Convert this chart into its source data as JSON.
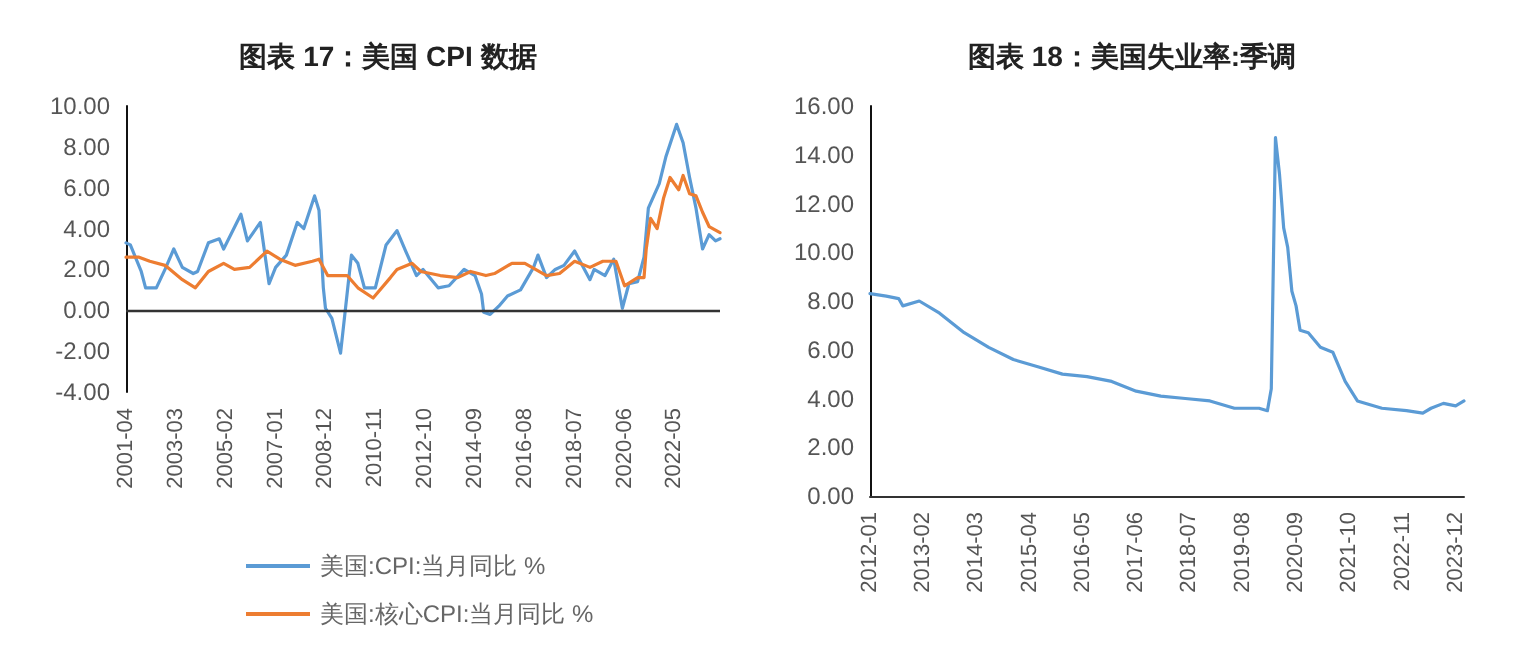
{
  "chart_data": [
    {
      "type": "line",
      "title": "图表 17：美国 CPI 数据",
      "xlim": [
        "2001-04",
        "2024-02"
      ],
      "xticks": [
        "2001-04",
        "2003-03",
        "2005-02",
        "2007-01",
        "2008-12",
        "2010-11",
        "2012-10",
        "2014-09",
        "2016-08",
        "2018-07",
        "2020-06",
        "2022-05"
      ],
      "ylim": [
        -4,
        10
      ],
      "yticks": [
        {
          "value": -4,
          "label": "-4.00"
        },
        {
          "value": -2,
          "label": "-2.00"
        },
        {
          "value": 0,
          "label": "0.00"
        },
        {
          "value": 2,
          "label": "2.00"
        },
        {
          "value": 4,
          "label": "4.00"
        },
        {
          "value": 6,
          "label": "6.00"
        },
        {
          "value": 8,
          "label": "8.00"
        },
        {
          "value": 10,
          "label": "10.00"
        }
      ],
      "grid": false,
      "ref_lines": [
        {
          "axis": "y",
          "value": 0,
          "color": "#333333"
        }
      ],
      "legend": "bottom",
      "marker": "none",
      "line_style": "solid",
      "series": [
        {
          "name": "美国:CPI:当月同比 %",
          "color": "#5b9bd5",
          "x": [
            "2001-04",
            "2001-06",
            "2001-11",
            "2002-01",
            "2002-06",
            "2002-10",
            "2003-02",
            "2003-06",
            "2003-11",
            "2004-01",
            "2004-06",
            "2004-11",
            "2005-01",
            "2005-09",
            "2005-12",
            "2006-06",
            "2006-10",
            "2007-01",
            "2007-06",
            "2007-11",
            "2008-02",
            "2008-07",
            "2008-09",
            "2008-11",
            "2008-12",
            "2009-03",
            "2009-07",
            "2009-11",
            "2009-12",
            "2010-03",
            "2010-06",
            "2010-11",
            "2011-04",
            "2011-09",
            "2012-01",
            "2012-06",
            "2012-09",
            "2013-04",
            "2013-09",
            "2014-04",
            "2014-09",
            "2014-12",
            "2015-01",
            "2015-04",
            "2015-08",
            "2015-12",
            "2016-06",
            "2016-12",
            "2017-02",
            "2017-06",
            "2017-10",
            "2018-02",
            "2018-07",
            "2018-12",
            "2019-02",
            "2019-04",
            "2019-09",
            "2019-12",
            "2020-01",
            "2020-05",
            "2020-08",
            "2020-12",
            "2021-03",
            "2021-05",
            "2021-10",
            "2022-01",
            "2022-06",
            "2022-09",
            "2022-12",
            "2023-03",
            "2023-06",
            "2023-09",
            "2023-12",
            "2024-02"
          ],
          "values": [
            3.3,
            3.2,
            1.9,
            1.1,
            1.1,
            2.0,
            3.0,
            2.1,
            1.8,
            1.9,
            3.3,
            3.5,
            3.0,
            4.7,
            3.4,
            4.3,
            1.3,
            2.1,
            2.7,
            4.3,
            4.0,
            5.6,
            4.9,
            1.1,
            0.1,
            -0.4,
            -2.1,
            1.8,
            2.7,
            2.3,
            1.1,
            1.1,
            3.2,
            3.9,
            2.9,
            1.7,
            2.0,
            1.1,
            1.2,
            2.0,
            1.7,
            0.8,
            -0.1,
            -0.2,
            0.2,
            0.7,
            1.0,
            2.1,
            2.7,
            1.6,
            2.0,
            2.2,
            2.9,
            1.9,
            1.5,
            2.0,
            1.7,
            2.3,
            2.5,
            0.1,
            1.3,
            1.4,
            2.6,
            5.0,
            6.2,
            7.5,
            9.1,
            8.2,
            6.5,
            5.0,
            3.0,
            3.7,
            3.4,
            3.5
          ]
        },
        {
          "name": "美国:核心CPI:当月同比 %",
          "color": "#ed7d31",
          "x": [
            "2001-04",
            "2001-10",
            "2002-03",
            "2002-10",
            "2003-06",
            "2003-12",
            "2004-06",
            "2005-01",
            "2005-06",
            "2006-01",
            "2006-09",
            "2007-03",
            "2007-10",
            "2008-06",
            "2008-09",
            "2009-01",
            "2009-06",
            "2009-10",
            "2010-03",
            "2010-10",
            "2011-06",
            "2011-09",
            "2012-04",
            "2012-08",
            "2013-05",
            "2014-01",
            "2014-07",
            "2015-02",
            "2015-06",
            "2016-02",
            "2016-08",
            "2017-06",
            "2017-12",
            "2018-07",
            "2019-02",
            "2019-08",
            "2020-02",
            "2020-06",
            "2020-12",
            "2021-03",
            "2021-04",
            "2021-06",
            "2021-09",
            "2021-12",
            "2022-03",
            "2022-07",
            "2022-09",
            "2022-12",
            "2023-03",
            "2023-06",
            "2023-09",
            "2024-02"
          ],
          "values": [
            2.6,
            2.6,
            2.4,
            2.2,
            1.5,
            1.1,
            1.9,
            2.3,
            2.0,
            2.1,
            2.9,
            2.5,
            2.2,
            2.4,
            2.5,
            1.7,
            1.7,
            1.7,
            1.1,
            0.6,
            1.6,
            2.0,
            2.3,
            1.9,
            1.7,
            1.6,
            1.9,
            1.7,
            1.8,
            2.3,
            2.3,
            1.7,
            1.8,
            2.4,
            2.1,
            2.4,
            2.4,
            1.2,
            1.6,
            1.6,
            3.0,
            4.5,
            4.0,
            5.5,
            6.5,
            5.9,
            6.6,
            5.7,
            5.6,
            4.8,
            4.1,
            3.8
          ]
        }
      ]
    },
    {
      "type": "line",
      "title": "图表 18：美国失业率:季调",
      "xlim": [
        "2012-01",
        "2024-02"
      ],
      "xticks": [
        "2012-01",
        "2013-02",
        "2014-03",
        "2015-04",
        "2016-05",
        "2017-06",
        "2018-07",
        "2019-08",
        "2020-09",
        "2021-10",
        "2022-11",
        "2023-12"
      ],
      "ylim": [
        0,
        16
      ],
      "yticks": [
        {
          "value": 0,
          "label": "0.00"
        },
        {
          "value": 2,
          "label": "2.00"
        },
        {
          "value": 4,
          "label": "4.00"
        },
        {
          "value": 6,
          "label": "6.00"
        },
        {
          "value": 8,
          "label": "8.00"
        },
        {
          "value": 10,
          "label": "10.00"
        },
        {
          "value": 12,
          "label": "12.00"
        },
        {
          "value": 14,
          "label": "14.00"
        },
        {
          "value": 16,
          "label": "16.00"
        }
      ],
      "grid": false,
      "legend": false,
      "marker": "none",
      "line_style": "solid",
      "series": [
        {
          "color": "#5b9bd5",
          "x": [
            "2012-01",
            "2012-05",
            "2012-08",
            "2012-09",
            "2013-01",
            "2013-06",
            "2013-12",
            "2014-06",
            "2014-12",
            "2015-06",
            "2015-12",
            "2016-06",
            "2016-12",
            "2017-06",
            "2017-12",
            "2018-06",
            "2018-12",
            "2019-06",
            "2019-12",
            "2020-02",
            "2020-03",
            "2020-04",
            "2020-05",
            "2020-06",
            "2020-07",
            "2020-08",
            "2020-09",
            "2020-10",
            "2020-12",
            "2021-03",
            "2021-06",
            "2021-09",
            "2021-12",
            "2022-06",
            "2022-12",
            "2023-04",
            "2023-06",
            "2023-09",
            "2023-12",
            "2024-02"
          ],
          "values": [
            8.3,
            8.2,
            8.1,
            7.8,
            8.0,
            7.5,
            6.7,
            6.1,
            5.6,
            5.3,
            5.0,
            4.9,
            4.7,
            4.3,
            4.1,
            4.0,
            3.9,
            3.6,
            3.6,
            3.5,
            4.4,
            14.7,
            13.2,
            11.0,
            10.2,
            8.4,
            7.8,
            6.8,
            6.7,
            6.1,
            5.9,
            4.7,
            3.9,
            3.6,
            3.5,
            3.4,
            3.6,
            3.8,
            3.7,
            3.9
          ]
        }
      ]
    }
  ]
}
